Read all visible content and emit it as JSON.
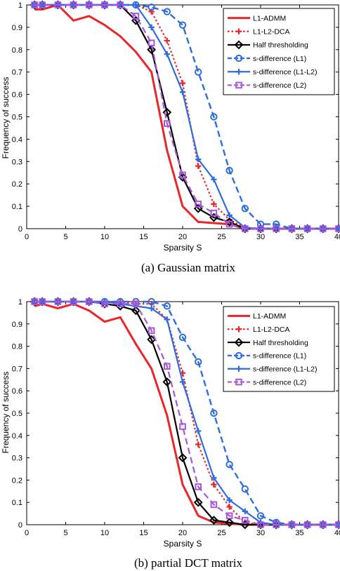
{
  "charts": [
    {
      "caption": "(a) Gaussian matrix",
      "chart_data": {
        "type": "line",
        "xlabel": "Sparsity S",
        "ylabel": "Frequency of success",
        "xlim": [
          0,
          40
        ],
        "ylim": [
          0,
          1
        ],
        "xticks": [
          0,
          5,
          10,
          15,
          20,
          25,
          30,
          35,
          40
        ],
        "yticks": [
          0,
          0.1,
          0.2,
          0.3,
          0.4,
          0.5,
          0.6,
          0.7,
          0.8,
          0.9,
          1
        ],
        "legend_position": "top-right",
        "grid": false,
        "series": [
          {
            "name": "L1-ADMM",
            "color": "#e8262b",
            "dash": "solid",
            "marker": "none",
            "width": 3,
            "x": [
              1,
              2,
              4,
              6,
              8,
              10,
              12,
              14,
              16,
              18,
              20,
              22,
              24,
              26,
              28,
              30,
              32,
              34,
              36,
              38,
              40
            ],
            "y": [
              0.98,
              0.98,
              1.0,
              0.93,
              0.95,
              0.91,
              0.86,
              0.79,
              0.7,
              0.35,
              0.1,
              0.03,
              0.025,
              0.02,
              0.0,
              0.0,
              0.0,
              0.0,
              0.0,
              0.0,
              0.0
            ]
          },
          {
            "name": "L1-L2-DCA",
            "color": "#e8262b",
            "dash": "dotted",
            "marker": "plus",
            "width": 2.2,
            "x": [
              1,
              2,
              4,
              6,
              8,
              10,
              12,
              14,
              16,
              18,
              20,
              22,
              24,
              26,
              28,
              30,
              32,
              34,
              36,
              38,
              40
            ],
            "y": [
              1,
              1,
              1,
              1,
              1,
              1,
              1,
              1,
              0.97,
              0.84,
              0.65,
              0.28,
              0.11,
              0.04,
              0.005,
              0,
              0,
              0,
              0,
              0,
              0
            ]
          },
          {
            "name": "Half thresholding",
            "color": "#000000",
            "dash": "solid",
            "marker": "diamond",
            "width": 2.2,
            "x": [
              1,
              2,
              4,
              6,
              8,
              10,
              12,
              14,
              16,
              18,
              20,
              22,
              24,
              26,
              28,
              30,
              32,
              34,
              36,
              38,
              40
            ],
            "y": [
              1,
              1,
              1,
              1,
              1,
              1,
              1,
              0.93,
              0.8,
              0.52,
              0.23,
              0.09,
              0.05,
              0.03,
              0,
              0,
              0,
              0,
              0,
              0,
              0
            ]
          },
          {
            "name": "s-difference (L1)",
            "color": "#2e6de0",
            "dash": "dashed",
            "marker": "circle",
            "width": 2.4,
            "x": [
              1,
              2,
              4,
              6,
              8,
              10,
              12,
              14,
              16,
              18,
              20,
              22,
              24,
              26,
              28,
              30,
              32,
              34,
              36,
              38,
              40
            ],
            "y": [
              1,
              1,
              1,
              1,
              1,
              1,
              1,
              1,
              0.99,
              0.97,
              0.91,
              0.7,
              0.5,
              0.26,
              0.09,
              0.02,
              0.02,
              0,
              0,
              0,
              0
            ]
          },
          {
            "name": "s-difference (L1-L2)",
            "color": "#2e6de0",
            "dash": "solid",
            "marker": "plus",
            "width": 2.2,
            "x": [
              1,
              2,
              4,
              6,
              8,
              10,
              12,
              14,
              16,
              18,
              20,
              22,
              24,
              26,
              28,
              30,
              32,
              34,
              36,
              38,
              40
            ],
            "y": [
              1,
              1,
              1,
              1,
              1,
              1,
              1,
              1,
              0.9,
              0.78,
              0.61,
              0.31,
              0.22,
              0.06,
              0.005,
              0,
              0,
              0,
              0,
              0,
              0
            ]
          },
          {
            "name": "s-difference (L2)",
            "color": "#a855e0",
            "dash": "dashed",
            "marker": "square",
            "width": 2.2,
            "x": [
              1,
              2,
              4,
              6,
              8,
              10,
              12,
              14,
              16,
              18,
              20,
              22,
              24,
              26,
              28,
              30,
              32,
              34,
              36,
              38,
              40
            ],
            "y": [
              1,
              1,
              1,
              1,
              1,
              1,
              1,
              0.95,
              0.83,
              0.47,
              0.24,
              0.11,
              0.07,
              0.02,
              0,
              0,
              0,
              0,
              0,
              0,
              0
            ]
          }
        ]
      }
    },
    {
      "caption": "(b) partial DCT matrix",
      "chart_data": {
        "type": "line",
        "xlabel": "Sparsity S",
        "ylabel": "Frequency of success",
        "xlim": [
          0,
          40
        ],
        "ylim": [
          0,
          1
        ],
        "xticks": [
          0,
          5,
          10,
          15,
          20,
          25,
          30,
          35,
          40
        ],
        "yticks": [
          0,
          0.1,
          0.2,
          0.3,
          0.4,
          0.5,
          0.6,
          0.7,
          0.8,
          0.9,
          1
        ],
        "legend_position": "top-right",
        "grid": false,
        "series": [
          {
            "name": "L1-ADMM",
            "color": "#e8262b",
            "dash": "solid",
            "marker": "none",
            "width": 3,
            "x": [
              1,
              2,
              4,
              6,
              8,
              10,
              12,
              14,
              16,
              18,
              20,
              22,
              24,
              26,
              28,
              30,
              32,
              34,
              36,
              38,
              40
            ],
            "y": [
              0.98,
              0.99,
              0.97,
              0.99,
              0.96,
              0.91,
              0.93,
              0.81,
              0.7,
              0.49,
              0.18,
              0.04,
              0.01,
              0.005,
              0,
              0,
              0,
              0,
              0,
              0,
              0
            ]
          },
          {
            "name": "L1-L2-DCA",
            "color": "#e8262b",
            "dash": "dotted",
            "marker": "plus",
            "width": 2.2,
            "x": [
              1,
              2,
              4,
              6,
              8,
              10,
              12,
              14,
              16,
              18,
              20,
              22,
              24,
              26,
              28,
              30,
              32,
              34,
              36,
              38,
              40
            ],
            "y": [
              1,
              1,
              1,
              1,
              1,
              1,
              1,
              0.99,
              0.99,
              0.92,
              0.68,
              0.36,
              0.18,
              0.08,
              0.01,
              0,
              0,
              0,
              0,
              0,
              0
            ]
          },
          {
            "name": "Half thresholding",
            "color": "#000000",
            "dash": "solid",
            "marker": "diamond",
            "width": 2.2,
            "x": [
              1,
              2,
              4,
              6,
              8,
              10,
              12,
              14,
              16,
              18,
              20,
              22,
              24,
              26,
              28,
              30,
              32,
              34,
              36,
              38,
              40
            ],
            "y": [
              1,
              1,
              1,
              1,
              1,
              0.99,
              0.98,
              0.96,
              0.83,
              0.64,
              0.3,
              0.1,
              0.02,
              0.01,
              0,
              0,
              0,
              0,
              0,
              0,
              0
            ]
          },
          {
            "name": "s-difference (L1)",
            "color": "#2e6de0",
            "dash": "dashed",
            "marker": "circle",
            "width": 2.4,
            "x": [
              1,
              2,
              4,
              6,
              8,
              10,
              12,
              14,
              16,
              18,
              20,
              22,
              24,
              26,
              28,
              30,
              32,
              34,
              36,
              38,
              40
            ],
            "y": [
              1,
              1,
              1,
              1,
              1,
              1,
              1,
              1,
              1.0,
              0.98,
              0.84,
              0.73,
              0.5,
              0.27,
              0.16,
              0.04,
              0.01,
              0,
              0,
              0,
              0
            ]
          },
          {
            "name": "s-difference (L1-L2)",
            "color": "#2e6de0",
            "dash": "solid",
            "marker": "plus",
            "width": 2.2,
            "x": [
              1,
              2,
              4,
              6,
              8,
              10,
              12,
              14,
              16,
              18,
              20,
              22,
              24,
              26,
              28,
              30,
              32,
              34,
              36,
              38,
              40
            ],
            "y": [
              1,
              1,
              1,
              1,
              1,
              1,
              0.99,
              0.98,
              0.97,
              0.92,
              0.64,
              0.42,
              0.21,
              0.11,
              0.06,
              0.01,
              0,
              0,
              0,
              0,
              0
            ]
          },
          {
            "name": "s-difference (L2)",
            "color": "#a855e0",
            "dash": "dashed",
            "marker": "square",
            "width": 2.2,
            "x": [
              1,
              2,
              4,
              6,
              8,
              10,
              12,
              14,
              16,
              18,
              20,
              22,
              24,
              26,
              28,
              30,
              32,
              34,
              36,
              38,
              40
            ],
            "y": [
              1,
              1,
              1,
              1,
              1,
              0.99,
              0.99,
              0.99,
              0.87,
              0.71,
              0.44,
              0.17,
              0.09,
              0.04,
              0.02,
              0,
              0,
              0,
              0,
              0,
              0
            ]
          }
        ]
      }
    }
  ]
}
